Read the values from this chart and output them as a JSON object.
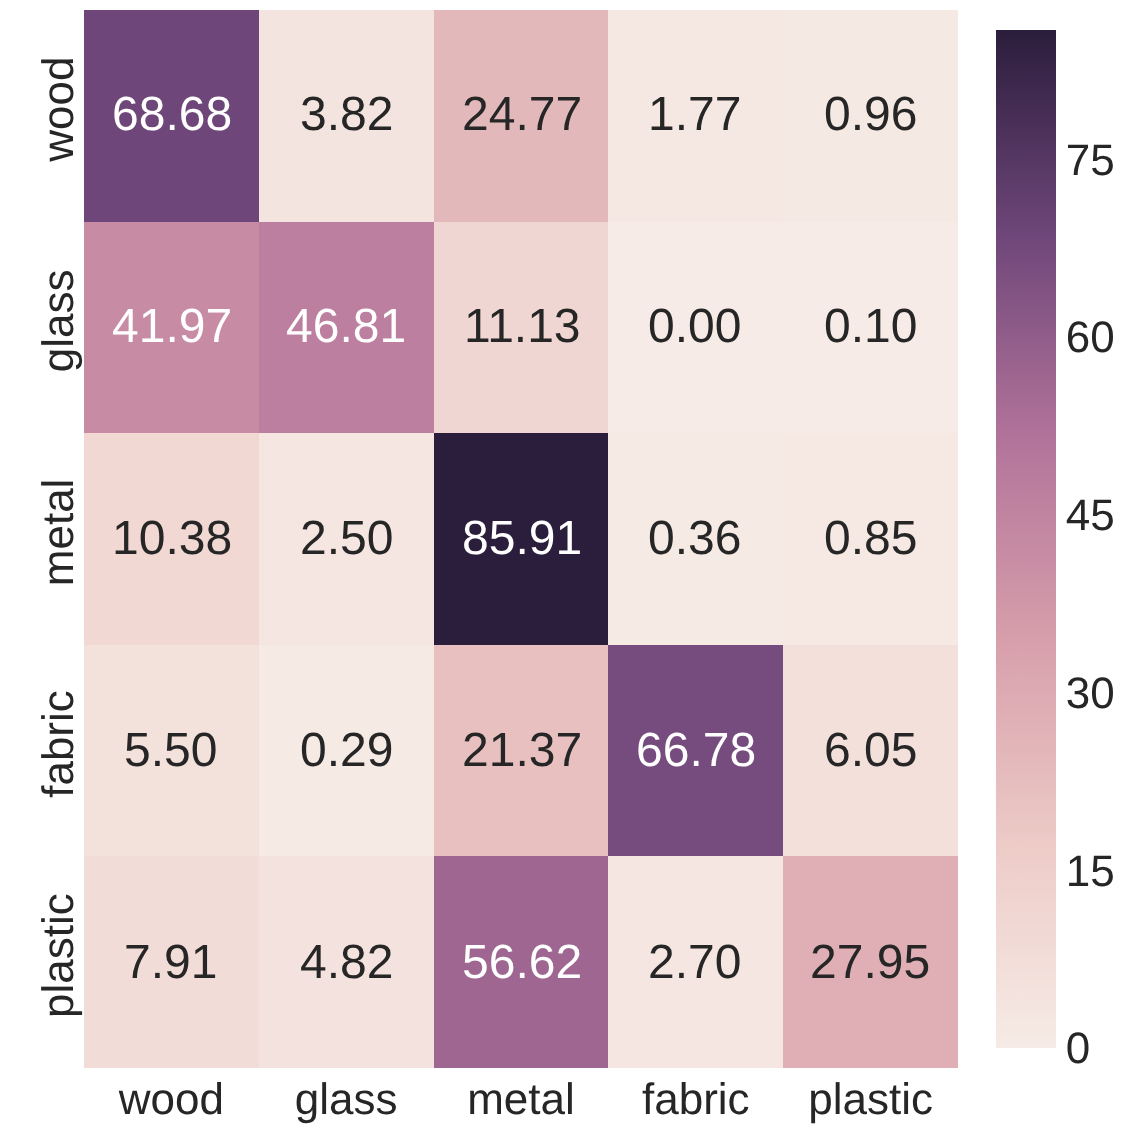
{
  "chart_data": {
    "type": "heatmap",
    "categories": [
      "wood",
      "glass",
      "metal",
      "fabric",
      "plastic"
    ],
    "y_categories": [
      "wood",
      "glass",
      "metal",
      "fabric",
      "plastic"
    ],
    "cells": [
      [
        68.68,
        3.82,
        24.77,
        1.77,
        0.96
      ],
      [
        41.97,
        46.81,
        11.13,
        0.0,
        0.1
      ],
      [
        10.38,
        2.5,
        85.91,
        0.36,
        0.85
      ],
      [
        5.5,
        0.29,
        21.37,
        66.78,
        6.05
      ],
      [
        7.91,
        4.82,
        56.62,
        2.7,
        27.95
      ]
    ],
    "cell_labels": [
      [
        "68.68",
        "3.82",
        "24.77",
        "1.77",
        "0.96"
      ],
      [
        "41.97",
        "46.81",
        "11.13",
        "0.00",
        "0.10"
      ],
      [
        "10.38",
        "2.50",
        "85.91",
        "0.36",
        "0.85"
      ],
      [
        "5.50",
        "0.29",
        "21.37",
        "66.78",
        "6.05"
      ],
      [
        "7.91",
        "4.82",
        "56.62",
        "2.70",
        "27.95"
      ]
    ],
    "clim": [
      0,
      85.91
    ],
    "cticks": [
      0,
      15,
      30,
      45,
      60,
      75
    ],
    "data_labels": true
  }
}
